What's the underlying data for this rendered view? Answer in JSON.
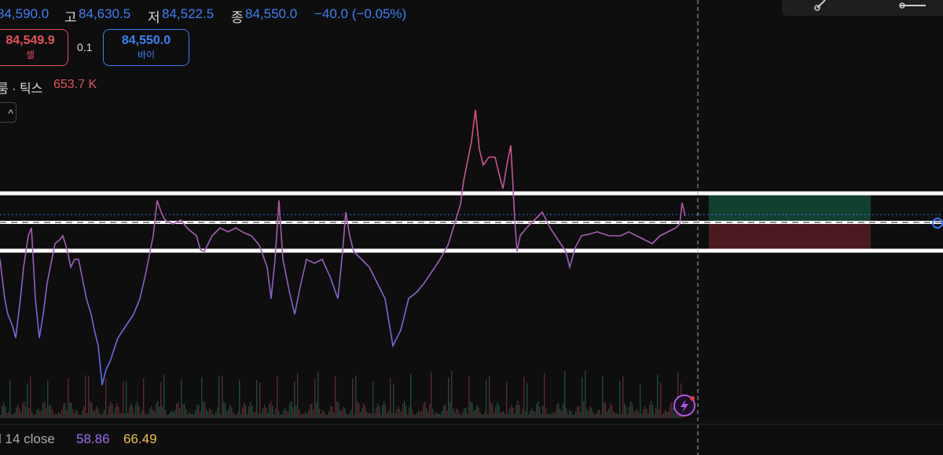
{
  "header": {
    "open_value": "84,590.0",
    "high_label": "고",
    "high_value": "84,630.5",
    "low_label": "저",
    "low_value": "84,522.5",
    "close_label": "종",
    "close_value": "84,550.0",
    "change": "−40.0 (−0.05%)"
  },
  "order": {
    "sell_price": "84,549.9",
    "sell_label": "셀",
    "spread": "0.1",
    "buy_price": "84,550.0",
    "buy_label": "바이"
  },
  "volume": {
    "label": "룸 · 틱스",
    "value": "653.7 K"
  },
  "collapse_icon": "^",
  "indicator": {
    "label": "l 14 close",
    "value_1": "58.86",
    "value_2": "66.49"
  }
}
